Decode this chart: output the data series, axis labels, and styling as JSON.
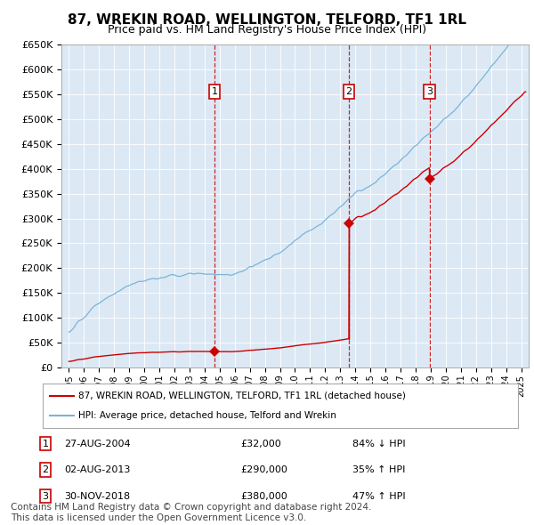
{
  "title": "87, WREKIN ROAD, WELLINGTON, TELFORD, TF1 1RL",
  "subtitle": "Price paid vs. HM Land Registry's House Price Index (HPI)",
  "title_fontsize": 11,
  "subtitle_fontsize": 9,
  "fig_bg_color": "#ffffff",
  "plot_bg_color": "#dce9f5",
  "hpi_line_color": "#7ab4d8",
  "price_line_color": "#cc0000",
  "sale_marker_color": "#cc0000",
  "vline_color": "#cc0000",
  "ylim": [
    0,
    650000
  ],
  "yticks": [
    0,
    50000,
    100000,
    150000,
    200000,
    250000,
    300000,
    350000,
    400000,
    450000,
    500000,
    550000,
    600000,
    650000
  ],
  "xlim_start": 1994.5,
  "xlim_end": 2025.5,
  "sales": [
    {
      "date_num": 2004.65,
      "price": 32000,
      "label": "1",
      "date_str": "27-AUG-2004",
      "pct": "84%",
      "dir": "↓"
    },
    {
      "date_num": 2013.58,
      "price": 290000,
      "label": "2",
      "date_str": "02-AUG-2013",
      "pct": "35%",
      "dir": "↑"
    },
    {
      "date_num": 2018.92,
      "price": 380000,
      "label": "3",
      "date_str": "30-NOV-2018",
      "pct": "47%",
      "dir": "↑"
    }
  ],
  "legend_entries": [
    {
      "label": "87, WREKIN ROAD, WELLINGTON, TELFORD, TF1 1RL (detached house)",
      "color": "#cc0000"
    },
    {
      "label": "HPI: Average price, detached house, Telford and Wrekin",
      "color": "#7ab4d8"
    }
  ],
  "footnote": "Contains HM Land Registry data © Crown copyright and database right 2024.\nThis data is licensed under the Open Government Licence v3.0.",
  "footnote_fontsize": 7.5
}
